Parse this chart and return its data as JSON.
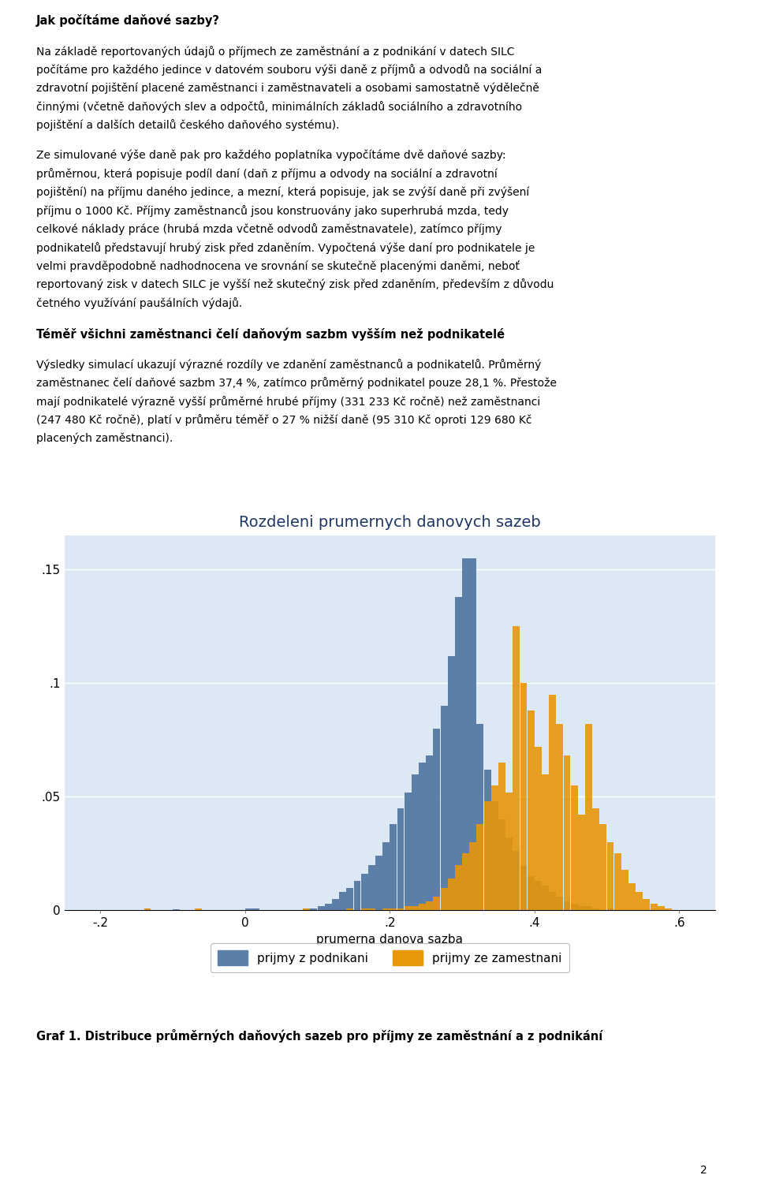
{
  "title": "Rozdeleni prumernych danovych sazeb",
  "xlabel": "prumerna danova sazba",
  "xlim": [
    -0.25,
    0.65
  ],
  "ylim": [
    0,
    0.165
  ],
  "yticks": [
    0,
    0.05,
    0.1,
    0.15
  ],
  "ytick_labels": [
    "0",
    ".05",
    ".1",
    ".15"
  ],
  "xticks": [
    -0.2,
    0,
    0.2,
    0.4,
    0.6
  ],
  "xtick_labels": [
    "-.2",
    "0",
    ".2",
    ".4",
    ".6"
  ],
  "color_podnikani": "#5b7fa6",
  "color_zamestnani": "#e8960a",
  "legend_label_podnikani": "prijmy z podnikani",
  "legend_label_zamestnani": "prijmy ze zamestnani",
  "bg_color": "#dce9f5",
  "fig_bg_color": "#ffffff",
  "title_color": "#1f3864",
  "body_title": "Jak počítáme daňové sazby?",
  "caption": "Graf 1. Distribuce průměrných daňových sazeb pro příjmy ze zaměstnání a z podnikání",
  "page_number": "2",
  "bin_width": 0.01,
  "pod_bars": [
    [
      -0.14,
      0.0008
    ],
    [
      -0.1,
      0.0005
    ],
    [
      0.0,
      0.001
    ],
    [
      0.01,
      0.001
    ],
    [
      0.08,
      0.001
    ],
    [
      0.09,
      0.001
    ],
    [
      0.1,
      0.002
    ],
    [
      0.11,
      0.003
    ],
    [
      0.12,
      0.005
    ],
    [
      0.13,
      0.008
    ],
    [
      0.14,
      0.01
    ],
    [
      0.15,
      0.013
    ],
    [
      0.16,
      0.016
    ],
    [
      0.17,
      0.02
    ],
    [
      0.18,
      0.024
    ],
    [
      0.19,
      0.03
    ],
    [
      0.2,
      0.038
    ],
    [
      0.21,
      0.045
    ],
    [
      0.22,
      0.052
    ],
    [
      0.23,
      0.06
    ],
    [
      0.24,
      0.065
    ],
    [
      0.25,
      0.068
    ],
    [
      0.26,
      0.08
    ],
    [
      0.27,
      0.09
    ],
    [
      0.28,
      0.112
    ],
    [
      0.29,
      0.138
    ],
    [
      0.3,
      0.155
    ],
    [
      0.31,
      0.155
    ],
    [
      0.32,
      0.082
    ],
    [
      0.33,
      0.062
    ],
    [
      0.34,
      0.048
    ],
    [
      0.35,
      0.04
    ],
    [
      0.36,
      0.032
    ],
    [
      0.37,
      0.026
    ],
    [
      0.38,
      0.02
    ],
    [
      0.39,
      0.015
    ],
    [
      0.4,
      0.013
    ],
    [
      0.41,
      0.011
    ],
    [
      0.42,
      0.008
    ],
    [
      0.43,
      0.006
    ],
    [
      0.44,
      0.004
    ],
    [
      0.45,
      0.003
    ],
    [
      0.46,
      0.002
    ],
    [
      0.47,
      0.002
    ],
    [
      0.48,
      0.001
    ],
    [
      0.5,
      0.001
    ]
  ],
  "zam_bars": [
    [
      -0.14,
      0.0008
    ],
    [
      -0.07,
      0.0008
    ],
    [
      0.08,
      0.001
    ],
    [
      0.14,
      0.001
    ],
    [
      0.16,
      0.001
    ],
    [
      0.17,
      0.001
    ],
    [
      0.19,
      0.001
    ],
    [
      0.2,
      0.001
    ],
    [
      0.21,
      0.001
    ],
    [
      0.22,
      0.002
    ],
    [
      0.23,
      0.002
    ],
    [
      0.24,
      0.003
    ],
    [
      0.25,
      0.004
    ],
    [
      0.26,
      0.006
    ],
    [
      0.27,
      0.01
    ],
    [
      0.28,
      0.014
    ],
    [
      0.29,
      0.02
    ],
    [
      0.3,
      0.025
    ],
    [
      0.31,
      0.03
    ],
    [
      0.32,
      0.038
    ],
    [
      0.33,
      0.048
    ],
    [
      0.34,
      0.055
    ],
    [
      0.35,
      0.065
    ],
    [
      0.36,
      0.052
    ],
    [
      0.37,
      0.125
    ],
    [
      0.38,
      0.1
    ],
    [
      0.39,
      0.088
    ],
    [
      0.4,
      0.072
    ],
    [
      0.41,
      0.06
    ],
    [
      0.42,
      0.095
    ],
    [
      0.43,
      0.082
    ],
    [
      0.44,
      0.068
    ],
    [
      0.45,
      0.055
    ],
    [
      0.46,
      0.042
    ],
    [
      0.47,
      0.082
    ],
    [
      0.48,
      0.045
    ],
    [
      0.49,
      0.038
    ],
    [
      0.5,
      0.03
    ],
    [
      0.51,
      0.025
    ],
    [
      0.52,
      0.018
    ],
    [
      0.53,
      0.012
    ],
    [
      0.54,
      0.008
    ],
    [
      0.55,
      0.005
    ],
    [
      0.56,
      0.003
    ],
    [
      0.57,
      0.002
    ],
    [
      0.58,
      0.001
    ]
  ],
  "body_lines": [
    {
      "text": "Jak počítáme daňové sazby?",
      "bold": true,
      "size": 10.5,
      "space_before": 0
    },
    {
      "text": "",
      "bold": false,
      "size": 9,
      "space_before": 0
    },
    {
      "text": "Na základě reportovaných údajů o příjmech ze zaměstnání a z podnikání v datech SILC",
      "bold": false,
      "size": 10,
      "space_before": 0
    },
    {
      "text": "počítáme pro každého jedince v datovém souboru výši daně z příjmů a odvodů na sociální a",
      "bold": false,
      "size": 10,
      "space_before": 0
    },
    {
      "text": "zdravotní pojištění placené zaměstnanci i zaměstnavateli a osobami samostatně výdělečně",
      "bold": false,
      "size": 10,
      "space_before": 0
    },
    {
      "text": "činnými (včetně daňových slev a odpočtů, minimálních základů sociálního a zdravotního",
      "bold": false,
      "size": 10,
      "space_before": 0
    },
    {
      "text": "pojištění a dalších detailů českého daňového systému).",
      "bold": false,
      "size": 10,
      "space_before": 0
    },
    {
      "text": "",
      "bold": false,
      "size": 9,
      "space_before": 0
    },
    {
      "text": "Ze simulované výše daně pak pro každého poplatníka vypočítáme dvě daňové sazby:",
      "bold": false,
      "size": 10,
      "space_before": 0
    },
    {
      "text": "průměrnou, která popisuje podíl daní (daň z příjmu a odvody na sociální a zdravotní",
      "bold": false,
      "size": 10,
      "space_before": 0
    },
    {
      "text": "pojištění) na příjmu daného jedince, a mezní, která popisuje, jak se zvýší daně při zvýšení",
      "bold": false,
      "size": 10,
      "space_before": 0
    },
    {
      "text": "příjmu o 1000 Kč. Příjmy zaměstnanců jsou konstruovány jako superhrubá mzda, tedy",
      "bold": false,
      "size": 10,
      "space_before": 0
    },
    {
      "text": "celkové náklady práce (hrubá mzda včetně odvodů zaměstnavatele), zatímco příjmy",
      "bold": false,
      "size": 10,
      "space_before": 0
    },
    {
      "text": "podnikatelů představují hrubý zisk před zdaněním. Vypočtená výše daní pro podnikatele je",
      "bold": false,
      "size": 10,
      "space_before": 0
    },
    {
      "text": "velmi pravděpodobně nadhodnocena ve srovnání se skutečně placenými daněmi, neboť",
      "bold": false,
      "size": 10,
      "space_before": 0
    },
    {
      "text": "reportovaný zisk v datech SILC je vyšší než skutečný zisk před zdaněním, především z důvodu",
      "bold": false,
      "size": 10,
      "space_before": 0
    },
    {
      "text": "četného využívání paušálních výdajů.",
      "bold": false,
      "size": 10,
      "space_before": 0
    },
    {
      "text": "",
      "bold": false,
      "size": 9,
      "space_before": 0
    },
    {
      "text": "Téměř všichni zaměstnanci čelí daňovým sazbm vyšším než podnikatelé",
      "bold": true,
      "size": 10.5,
      "space_before": 0
    },
    {
      "text": "",
      "bold": false,
      "size": 9,
      "space_before": 0
    },
    {
      "text": "Výsledky simulací ukazují výrazné rozdíly ve zdanění zaměstnanců a podnikatelů. Průměrný",
      "bold": false,
      "size": 10,
      "space_before": 0
    },
    {
      "text": "zaměstnanec čelí daňové sazbm 37,4 %, zatímco průměrný podnikatel pouze 28,1 %. Přestože",
      "bold": false,
      "size": 10,
      "space_before": 0
    },
    {
      "text": "mají podnikatelé výrazně vyšší průměrné hrubé příjmy (331 233 Kč ročně) než zaměstnanci",
      "bold": false,
      "size": 10,
      "space_before": 0
    },
    {
      "text": "(247 480 Kč ročně), platí v průměru téměř o 27 % nižší daně (95 310 Kč oproti 129 680 Kč",
      "bold": false,
      "size": 10,
      "space_before": 0
    },
    {
      "text": "placených zaměstnanci).",
      "bold": false,
      "size": 10,
      "space_before": 0
    }
  ]
}
